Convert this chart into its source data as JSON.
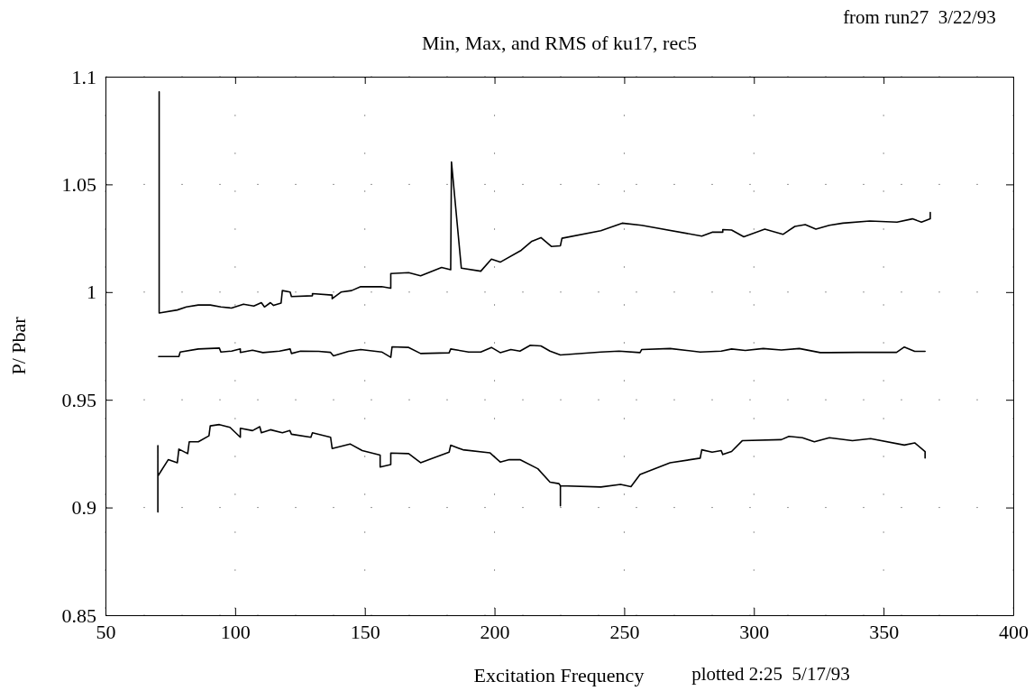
{
  "chart_data": {
    "type": "line",
    "title": "Min, Max, and RMS of ku17, rec5",
    "xlabel": "Excitation Frequency",
    "ylabel": "P/ Pbar",
    "annotations": [
      "from run27  3/22/93",
      "plotted 2:25  5/17/93"
    ],
    "xlim": [
      50,
      400
    ],
    "xticks": [
      50,
      100,
      150,
      200,
      250,
      300,
      350,
      400
    ],
    "ylim": [
      0.85,
      1.1
    ],
    "yticks": [
      0.85,
      0.9,
      0.95,
      1,
      1.05,
      1.1
    ],
    "grid": true,
    "marker": "none",
    "line_style": "solid",
    "series": [
      {
        "color": "#000000",
        "x": [
          70.7,
          70.7,
          77.7,
          81.2,
          85.8,
          90.4,
          94.5,
          98.6,
          103.2,
          107.2,
          110.1,
          111.3,
          113.6,
          114.8,
          117.7,
          118.2,
          121.2,
          121.7,
          129.8,
          129.8,
          137.4,
          137.4,
          140.8,
          144.9,
          148.4,
          156.5,
          160,
          160,
          166.9,
          171.5,
          179.6,
          183.1,
          183.4,
          187.2,
          194.7,
          198.8,
          202.2,
          210.3,
          214.4,
          217.9,
          221.9,
          225.4,
          226,
          241,
          249.2,
          256.7,
          279.9,
          283.9,
          288,
          288,
          291.4,
          296.1,
          304.2,
          311.2,
          315.8,
          319.8,
          323.9,
          329.1,
          334.3,
          344.7,
          355.2,
          361.1,
          364.6,
          368,
          368
        ],
        "values": [
          1.093,
          0.9903,
          0.9917,
          0.9931,
          0.994,
          0.994,
          0.9931,
          0.9926,
          0.9944,
          0.9935,
          0.9951,
          0.9931,
          0.9951,
          0.9938,
          0.9949,
          1.0007,
          1.0,
          0.9979,
          0.9983,
          0.9993,
          0.9986,
          0.9969,
          1.0,
          1.0007,
          1.0025,
          1.0025,
          1.0018,
          1.0086,
          1.009,
          1.0076,
          1.0114,
          1.0104,
          1.0604,
          1.0111,
          1.0097,
          1.0153,
          1.0139,
          1.0194,
          1.0236,
          1.0253,
          1.0212,
          1.0215,
          1.025,
          1.0285,
          1.032,
          1.031,
          1.026,
          1.0278,
          1.0278,
          1.029,
          1.0288,
          1.0257,
          1.0292,
          1.0268,
          1.0305,
          1.0313,
          1.0292,
          1.031,
          1.032,
          1.033,
          1.0325,
          1.034,
          1.0325,
          1.034,
          1.037
        ]
      },
      {
        "color": "#000000",
        "x": [
          70.5,
          78.3,
          78.8,
          85.8,
          93.9,
          94.5,
          98.6,
          102,
          102,
          106.7,
          110.7,
          117.1,
          121.2,
          121.7,
          125.2,
          132.2,
          136.8,
          137.9,
          143.7,
          148.4,
          156.5,
          160,
          160.5,
          166.9,
          171.5,
          182.5,
          183.1,
          190,
          194.7,
          198.8,
          202.2,
          206.3,
          209.8,
          213.8,
          217.9,
          221.4,
          225.4,
          241,
          248,
          256.1,
          256.7,
          267.7,
          279.3,
          287.4,
          291.4,
          296.7,
          303.6,
          310.6,
          317.5,
          325.6,
          329.1,
          340,
          355,
          358,
          362,
          366
        ],
        "values": [
          0.9701,
          0.9701,
          0.9722,
          0.9736,
          0.974,
          0.9722,
          0.9726,
          0.9736,
          0.972,
          0.973,
          0.9719,
          0.9726,
          0.9736,
          0.9715,
          0.9726,
          0.9725,
          0.972,
          0.9704,
          0.9725,
          0.9733,
          0.9722,
          0.9697,
          0.9746,
          0.9743,
          0.9715,
          0.9718,
          0.9736,
          0.9722,
          0.9722,
          0.9743,
          0.9719,
          0.9733,
          0.9726,
          0.9753,
          0.975,
          0.9726,
          0.9708,
          0.9722,
          0.9726,
          0.9719,
          0.9733,
          0.9738,
          0.9722,
          0.9726,
          0.9736,
          0.9729,
          0.9738,
          0.9731,
          0.9738,
          0.9719,
          0.9719,
          0.972,
          0.972,
          0.9745,
          0.9725,
          0.9725
        ]
      },
      {
        "color": "#000000",
        "x": [
          70.2,
          70.2,
          70.2,
          74.2,
          77.7,
          78.3,
          81.7,
          82.3,
          85.8,
          89.9,
          90.4,
          93.9,
          98,
          102,
          102,
          106.7,
          109.5,
          110.1,
          113.6,
          118.2,
          121.1,
          121.7,
          129.2,
          129.8,
          136.8,
          137.4,
          144.3,
          149,
          155.9,
          155.9,
          160,
          160,
          166.9,
          171.5,
          182.5,
          183.1,
          187.8,
          198.2,
          202.2,
          205.7,
          209.8,
          216.7,
          221.4,
          224.8,
          225.4,
          225.4,
          225.4,
          241,
          248.6,
          252.6,
          256.1,
          267.7,
          279.3,
          279.9,
          283.9,
          287.4,
          288,
          291.4,
          295.5,
          310.6,
          313.5,
          318.7,
          323.3,
          329.1,
          338,
          345,
          358,
          362,
          366,
          366
        ],
        "values": [
          0.8979,
          0.9287,
          0.9146,
          0.9222,
          0.9208,
          0.9271,
          0.925,
          0.9305,
          0.9305,
          0.9333,
          0.9379,
          0.9385,
          0.9372,
          0.9326,
          0.9368,
          0.9357,
          0.9375,
          0.9347,
          0.9361,
          0.9347,
          0.9357,
          0.934,
          0.9326,
          0.9347,
          0.9326,
          0.9274,
          0.9295,
          0.9264,
          0.9243,
          0.9188,
          0.9199,
          0.9253,
          0.925,
          0.9208,
          0.9257,
          0.9289,
          0.9268,
          0.9254,
          0.9211,
          0.9222,
          0.9222,
          0.918,
          0.9118,
          0.9111,
          0.9101,
          0.9008,
          0.9101,
          0.9095,
          0.9107,
          0.9097,
          0.9153,
          0.9208,
          0.9229,
          0.9268,
          0.9257,
          0.9264,
          0.9246,
          0.926,
          0.931,
          0.9315,
          0.933,
          0.9324,
          0.9305,
          0.9324,
          0.931,
          0.932,
          0.929,
          0.93,
          0.926,
          0.923
        ]
      }
    ]
  }
}
